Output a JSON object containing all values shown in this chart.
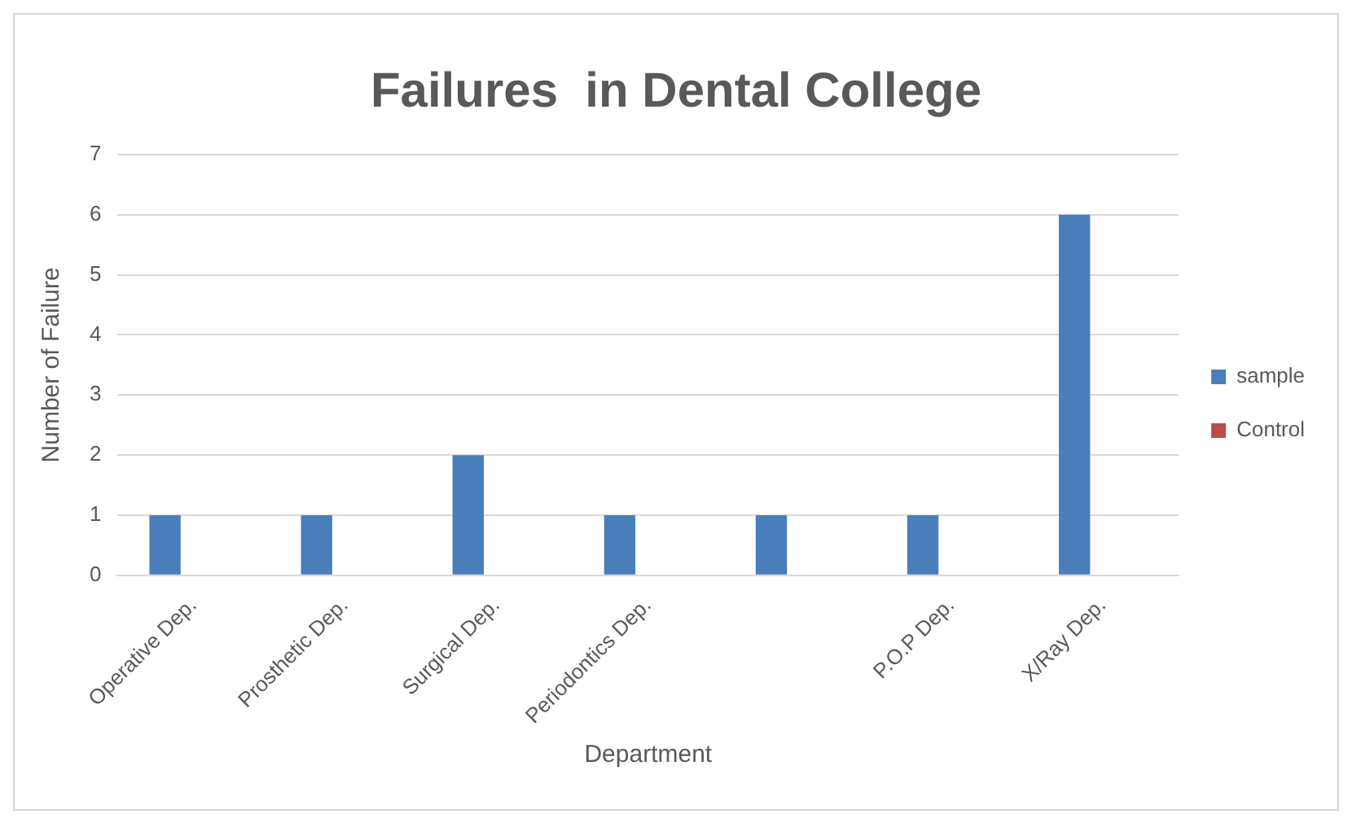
{
  "chart_data": {
    "type": "bar",
    "title": "Failures  in Dental College",
    "xlabel": "Department",
    "ylabel": "Number of Failure",
    "categories": [
      "Operative Dep.",
      "Prosthetic Dep.",
      "Surgical Dep.",
      "Periodontics Dep.",
      null,
      "P.O.P Dep.",
      "X/Ray Dep."
    ],
    "series": [
      {
        "name": "sample",
        "color": "#4a7ebb",
        "values": [
          1,
          1,
          2,
          1,
          1,
          1,
          6
        ]
      },
      {
        "name": "Control",
        "color": "#be4b48",
        "values": [
          0,
          0,
          0,
          0,
          0,
          0,
          0
        ]
      }
    ],
    "ylim": [
      0,
      7
    ],
    "yticks": [
      0,
      1,
      2,
      3,
      4,
      5,
      6,
      7
    ],
    "grid": "y",
    "legend": "right"
  }
}
